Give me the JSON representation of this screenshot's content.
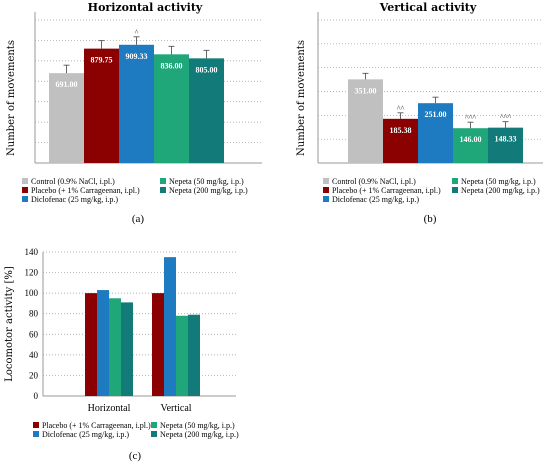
{
  "colors": {
    "control": "#c0c0c0",
    "placebo": "#8b0000",
    "diclofenac": "#1f7bc1",
    "nepeta50": "#1fa77a",
    "nepeta200": "#137a7a"
  },
  "chart_data": [
    {
      "id": "a",
      "type": "bar",
      "title": "Horizontal activity",
      "ylabel": "Number of movements",
      "ylim": [
        0,
        1100
      ],
      "grid": true,
      "series": [
        {
          "name": "Control (0.9% NaCl, i.pl.)",
          "key": "control",
          "value": 691.0,
          "label": "691.00",
          "sig": ""
        },
        {
          "name": "Placebo (+ 1% Carrageenan, i.pl.)",
          "key": "placebo",
          "value": 879.75,
          "label": "879.75",
          "sig": ""
        },
        {
          "name": "Diclofenac (25 mg/kg, i.p.)",
          "key": "diclofenac",
          "value": 909.33,
          "label": "909.33",
          "sig": "^"
        },
        {
          "name": "Nepeta (50 mg/kg, i.p.)",
          "key": "nepeta50",
          "value": 836.0,
          "label": "836.00",
          "sig": ""
        },
        {
          "name": "Nepeta (200 mg/kg, i.p.)",
          "key": "nepeta200",
          "value": 805.0,
          "label": "805.00",
          "sig": ""
        }
      ],
      "caption": "(a)"
    },
    {
      "id": "b",
      "type": "bar",
      "title": "Vertical activity",
      "ylabel": "Number of movements",
      "ylim": [
        0,
        600
      ],
      "grid": true,
      "series": [
        {
          "name": "Control (0.9% NaCl, i.pl.)",
          "key": "control",
          "value": 351.0,
          "label": "351.00",
          "sig": ""
        },
        {
          "name": "Placebo (+ 1% Carrageenan, i.pl.)",
          "key": "placebo",
          "value": 185.38,
          "label": "185.38",
          "sig": "^^"
        },
        {
          "name": "Diclofenac (25 mg/kg, i.p.)",
          "key": "diclofenac",
          "value": 251.0,
          "label": "251.00",
          "sig": ""
        },
        {
          "name": "Nepeta (50 mg/kg, i.p.)",
          "key": "nepeta50",
          "value": 146.0,
          "label": "146.00",
          "sig": "^^^"
        },
        {
          "name": "Nepeta (200 mg/kg, i.p.)",
          "key": "nepeta200",
          "value": 148.33,
          "label": "148.33",
          "sig": "^^^"
        }
      ],
      "caption": "(b)"
    },
    {
      "id": "c",
      "type": "bar",
      "ylabel": "Locomotor activity [%]",
      "ylim": [
        0,
        140
      ],
      "yticks": [
        0,
        20,
        40,
        60,
        80,
        100,
        120,
        140
      ],
      "grid": true,
      "categories": [
        "Horizontal",
        "Vertical"
      ],
      "series": [
        {
          "name": "Placebo (+ 1% Carrageenan, i.pl.)",
          "key": "placebo",
          "values": [
            100,
            100
          ]
        },
        {
          "name": "Diclofenac (25 mg/kg, i.p.)",
          "key": "diclofenac",
          "values": [
            103,
            135
          ]
        },
        {
          "name": "Nepeta (50 mg/kg, i.p.)",
          "key": "nepeta50",
          "values": [
            95,
            78
          ]
        },
        {
          "name": "Nepeta (200 mg/kg, i.p.)",
          "key": "nepeta200",
          "values": [
            91,
            79
          ]
        }
      ],
      "caption": "(c)"
    }
  ]
}
